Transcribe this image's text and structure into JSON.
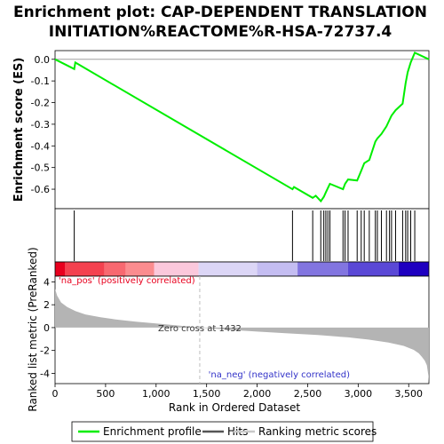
{
  "chart_data": {
    "type": "line",
    "title_line1": "Enrichment plot: CAP-DEPENDENT TRANSLATION",
    "title_line2": "INITIATION%REACTOME%R-HSA-72737.4",
    "ylabel_top": "Enrichment score (ES)",
    "ylabel_bottom": "Ranked list metric (PreRanked)",
    "xlabel": "Rank in Ordered Dataset",
    "xlim": [
      0,
      3700
    ],
    "x_ticks": [
      0,
      500,
      1000,
      1500,
      2000,
      2500,
      3000,
      3500
    ],
    "x_tick_labels": [
      "0",
      "500",
      "1,000",
      "1,500",
      "2,000",
      "2,500",
      "3,000",
      "3,500"
    ],
    "es_ylim": [
      -0.69,
      0.04
    ],
    "es_ticks": [
      0.0,
      -0.1,
      -0.2,
      -0.3,
      -0.4,
      -0.5,
      -0.6
    ],
    "es_tick_labels": [
      "0.0",
      "-0.1",
      "-0.2",
      "-0.3",
      "-0.4",
      "-0.5",
      "-0.6"
    ],
    "metric_ylim": [
      -4.9,
      4.5
    ],
    "metric_ticks": [
      4,
      2,
      0,
      -2,
      -4
    ],
    "metric_tick_labels": [
      "4",
      "2",
      "0",
      "-2",
      "-4"
    ],
    "enrichment_profile": {
      "name": "Enrichment profile",
      "color": "#00ee00",
      "x": [
        0,
        190,
        200,
        2350,
        2365,
        2550,
        2580,
        2630,
        2660,
        2680,
        2700,
        2720,
        2850,
        2870,
        2900,
        2990,
        3030,
        3060,
        3110,
        3170,
        3190,
        3230,
        3280,
        3310,
        3330,
        3370,
        3440,
        3470,
        3490,
        3520,
        3560,
        3700
      ],
      "y": [
        0.0,
        -0.045,
        -0.015,
        -0.6,
        -0.59,
        -0.64,
        -0.63,
        -0.655,
        -0.635,
        -0.615,
        -0.595,
        -0.575,
        -0.6,
        -0.575,
        -0.555,
        -0.56,
        -0.515,
        -0.48,
        -0.465,
        -0.38,
        -0.365,
        -0.345,
        -0.31,
        -0.28,
        -0.26,
        -0.235,
        -0.205,
        -0.11,
        -0.06,
        -0.015,
        0.03,
        0.0
      ]
    },
    "hits": [
      190,
      2350,
      2550,
      2630,
      2660,
      2680,
      2700,
      2720,
      2850,
      2870,
      2900,
      2990,
      3030,
      3060,
      3110,
      3170,
      3190,
      3230,
      3280,
      3310,
      3330,
      3370,
      3440,
      3470,
      3490,
      3520,
      3560
    ],
    "hits_color": "#000000",
    "ranking_bar": [
      {
        "from": 0,
        "to": 100,
        "color": "#e8001e"
      },
      {
        "from": 100,
        "to": 490,
        "color": "#f4414f"
      },
      {
        "from": 490,
        "to": 700,
        "color": "#f86870"
      },
      {
        "from": 700,
        "to": 980,
        "color": "#fb8c8f"
      },
      {
        "from": 980,
        "to": 1420,
        "color": "#fbc8dc"
      },
      {
        "from": 1420,
        "to": 2000,
        "color": "#dcd6f6"
      },
      {
        "from": 2000,
        "to": 2400,
        "color": "#c4bdf1"
      },
      {
        "from": 2400,
        "to": 2900,
        "color": "#8275e0"
      },
      {
        "from": 2900,
        "to": 3400,
        "color": "#5a48d6"
      },
      {
        "from": 3400,
        "to": 3700,
        "color": "#1e00c0"
      }
    ],
    "ranking_metric": {
      "name": "Ranking metric scores",
      "color": "#b4b4b4",
      "x": [
        0,
        20,
        60,
        120,
        200,
        300,
        450,
        600,
        800,
        1000,
        1200,
        1432,
        1700,
        2000,
        2300,
        2600,
        2900,
        3100,
        3300,
        3450,
        3550,
        3600,
        3630,
        3660,
        3680,
        3695,
        3700
      ],
      "y": [
        3.4,
        2.8,
        2.2,
        1.8,
        1.45,
        1.15,
        0.9,
        0.72,
        0.52,
        0.36,
        0.2,
        0.0,
        -0.18,
        -0.35,
        -0.5,
        -0.65,
        -0.85,
        -1.05,
        -1.3,
        -1.6,
        -1.95,
        -2.25,
        -2.55,
        -2.9,
        -3.3,
        -4.2,
        -4.8
      ]
    },
    "zero_cross_label": "Zero cross at 1432",
    "zero_cross_x": 1432,
    "na_pos_label": "'na_pos' (positively correlated)",
    "na_pos_color": "#e8001e",
    "na_neg_label": "'na_neg' (negatively correlated)",
    "na_neg_color": "#3232c8",
    "legend": [
      {
        "label": "Enrichment profile",
        "color": "#00ee00"
      },
      {
        "label": "Hits",
        "color": "#555555"
      },
      {
        "label": "Ranking metric scores",
        "color": "#c8c8c8"
      }
    ]
  }
}
